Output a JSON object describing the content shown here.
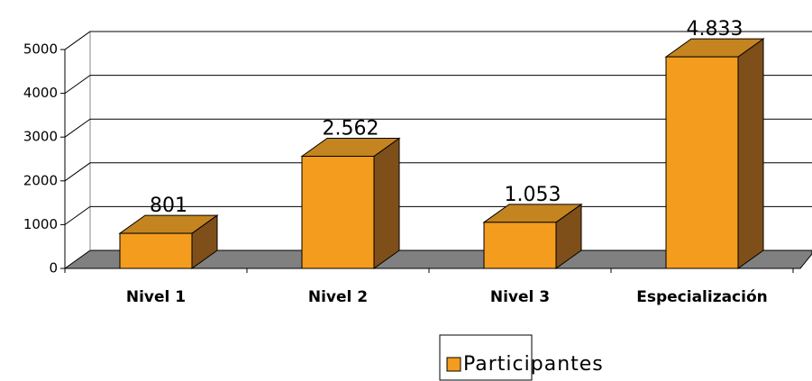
{
  "chart_data": {
    "type": "bar3d",
    "categories": [
      "Nivel 1",
      "Nivel 2",
      "Nivel 3",
      "Especialización"
    ],
    "series": [
      {
        "name": "Participantes",
        "color": "#f39c1e",
        "values": [
          801,
          2562,
          1053,
          4833
        ],
        "value_labels": [
          "801",
          "2.562",
          "1.053",
          "4.833"
        ]
      }
    ],
    "ylim": [
      0,
      5000
    ],
    "yticks": [
      0,
      1000,
      2000,
      3000,
      4000,
      5000
    ],
    "grid": true,
    "legend": "bottom"
  }
}
